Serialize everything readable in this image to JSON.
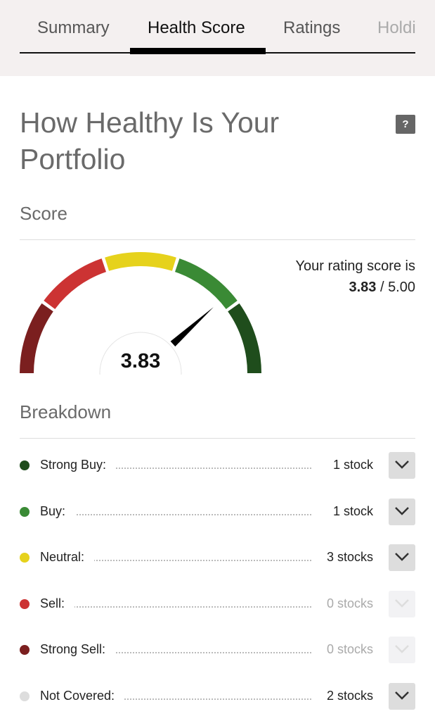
{
  "tabs": [
    {
      "label": "Summary"
    },
    {
      "label": "Health Score",
      "active": true
    },
    {
      "label": "Ratings"
    },
    {
      "label": "Holdings"
    }
  ],
  "title": "How Healthy Is Your Portfolio",
  "help_label": "?",
  "score": {
    "heading": "Score",
    "value": 3.83,
    "max": 5.0,
    "value_label": "3.83",
    "max_label": "5.00",
    "intro": "Your rating score is",
    "separator": " / "
  },
  "gauge_colors": [
    "#7b1f1f",
    "#cc3333",
    "#e6d21c",
    "#3a8a35",
    "#1f4d1c"
  ],
  "breakdown": {
    "heading": "Breakdown",
    "rows": [
      {
        "label": "Strong Buy:",
        "count": "1 stock",
        "color": "#1f4d1c",
        "enabled": true
      },
      {
        "label": "Buy:",
        "count": "1 stock",
        "color": "#3a8a35",
        "enabled": true
      },
      {
        "label": "Neutral:",
        "count": "3 stocks",
        "color": "#e6d21c",
        "enabled": true
      },
      {
        "label": "Sell:",
        "count": "0 stocks",
        "color": "#cc3333",
        "enabled": false
      },
      {
        "label": "Strong Sell:",
        "count": "0 stocks",
        "color": "#7b1f1f",
        "enabled": false
      },
      {
        "label": "Not Covered:",
        "count": "2 stocks",
        "color": "#dddddd",
        "enabled": true
      }
    ]
  }
}
